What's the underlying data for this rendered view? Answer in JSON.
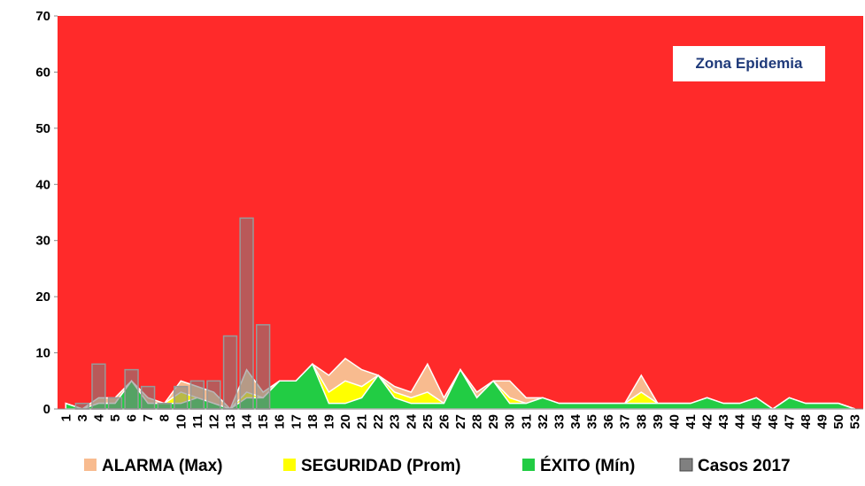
{
  "chart_data": {
    "type": "area",
    "annotation": "Zona Epidemia",
    "plot_color": "#ff2a2a",
    "categories": [
      "1",
      "3",
      "4",
      "5",
      "6",
      "7",
      "8",
      "10",
      "11",
      "12",
      "13",
      "14",
      "15",
      "16",
      "17",
      "18",
      "19",
      "20",
      "21",
      "22",
      "23",
      "24",
      "25",
      "26",
      "27",
      "28",
      "29",
      "30",
      "31",
      "32",
      "33",
      "34",
      "35",
      "36",
      "37",
      "38",
      "39",
      "40",
      "41",
      "42",
      "43",
      "44",
      "45",
      "46",
      "47",
      "48",
      "49",
      "50",
      "53"
    ],
    "series": [
      {
        "name": "ALARMA (Max)",
        "color": "#f8bb8f",
        "values": [
          1,
          0,
          2,
          2,
          5,
          2,
          1,
          5,
          4,
          3,
          0,
          7,
          3,
          5,
          5,
          8,
          6,
          9,
          7,
          6,
          4,
          3,
          8,
          2,
          7,
          3,
          5,
          5,
          2,
          2,
          1,
          1,
          1,
          1,
          1,
          6,
          1,
          1,
          1,
          2,
          1,
          1,
          2,
          0,
          2,
          1,
          1,
          1,
          0
        ]
      },
      {
        "name": "SEGURIDAD (Prom)",
        "color": "#ffff00",
        "values": [
          1,
          0,
          1,
          1,
          5,
          1,
          1,
          3,
          2,
          1,
          0,
          3,
          2,
          5,
          5,
          8,
          3,
          5,
          4,
          6,
          3,
          2,
          3,
          1,
          7,
          2,
          5,
          2,
          1,
          2,
          1,
          1,
          1,
          1,
          1,
          3,
          1,
          1,
          1,
          2,
          1,
          1,
          2,
          0,
          2,
          1,
          1,
          1,
          0
        ]
      },
      {
        "name": "ÉXITO (Mín)",
        "color": "#22cc44",
        "values": [
          1,
          0,
          1,
          1,
          5,
          1,
          1,
          1,
          2,
          1,
          0,
          2,
          2,
          5,
          5,
          8,
          1,
          1,
          2,
          6,
          2,
          1,
          1,
          1,
          7,
          2,
          5,
          1,
          1,
          2,
          1,
          1,
          1,
          1,
          1,
          1,
          1,
          1,
          1,
          2,
          1,
          1,
          2,
          0,
          2,
          1,
          1,
          1,
          0
        ]
      },
      {
        "name": "Casos 2017",
        "color": "#808080",
        "type": "bar",
        "values": [
          0,
          1,
          8,
          2,
          7,
          4,
          1,
          4,
          5,
          5,
          13,
          34,
          15,
          null,
          null,
          null,
          null,
          null,
          null,
          null,
          null,
          null,
          null,
          null,
          null,
          null,
          null,
          null,
          null,
          null,
          null,
          null,
          null,
          null,
          null,
          null,
          null,
          null,
          null,
          null,
          null,
          null,
          null,
          null,
          null,
          null,
          null,
          null,
          null
        ]
      }
    ],
    "ylim": [
      0,
      70
    ],
    "yticks": [
      0,
      10,
      20,
      30,
      40,
      50,
      60,
      70
    ]
  }
}
